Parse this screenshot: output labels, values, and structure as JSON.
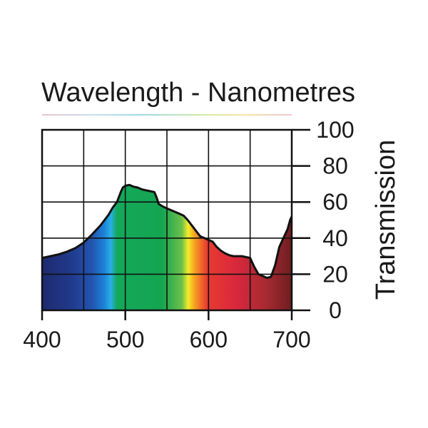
{
  "chart_data": {
    "type": "area",
    "title": "Wavelength - Nanometres",
    "xlabel": "",
    "ylabel": "Transmission",
    "xlim": [
      400,
      700
    ],
    "ylim": [
      0,
      100
    ],
    "x_ticks": [
      400,
      500,
      600,
      700
    ],
    "x_gridlines": [
      450,
      500,
      550,
      600,
      650
    ],
    "y_ticks": [
      0,
      20,
      40,
      60,
      80,
      100
    ],
    "grid": true,
    "series": [
      {
        "name": "Transmission",
        "x": [
          400,
          410,
          420,
          430,
          440,
          450,
          460,
          470,
          480,
          485,
          490,
          495,
          497,
          500,
          505,
          510,
          515,
          520,
          525,
          530,
          535,
          538,
          540,
          545,
          550,
          555,
          560,
          565,
          570,
          575,
          580,
          585,
          590,
          595,
          600,
          605,
          610,
          615,
          620,
          625,
          630,
          635,
          640,
          645,
          650,
          655,
          660,
          665,
          670,
          675,
          680,
          685,
          690,
          695,
          698,
          700
        ],
        "values": [
          29,
          30,
          31,
          32.5,
          34.5,
          37.5,
          42,
          47,
          53,
          57,
          60,
          66,
          68,
          69,
          69.5,
          68.5,
          68,
          67,
          66.5,
          66,
          65.5,
          62,
          59,
          57.5,
          56.5,
          55.5,
          54.5,
          53.5,
          52.5,
          50,
          47,
          44,
          41,
          40,
          39,
          38,
          35,
          33,
          31.5,
          30.5,
          30,
          30,
          30,
          29.5,
          29,
          24,
          20,
          19,
          18,
          18.5,
          25,
          35,
          40,
          45,
          50,
          52
        ]
      }
    ],
    "spectrum_colors": [
      "#1e2a6e",
      "#213a8c",
      "#2354b0",
      "#1c84d8",
      "#29b0e8",
      "#13a85a",
      "#14a551",
      "#6cc04a",
      "#f4ec2a",
      "#f6a320",
      "#e83b30",
      "#d7283d",
      "#a52a30",
      "#6e1e22"
    ]
  }
}
